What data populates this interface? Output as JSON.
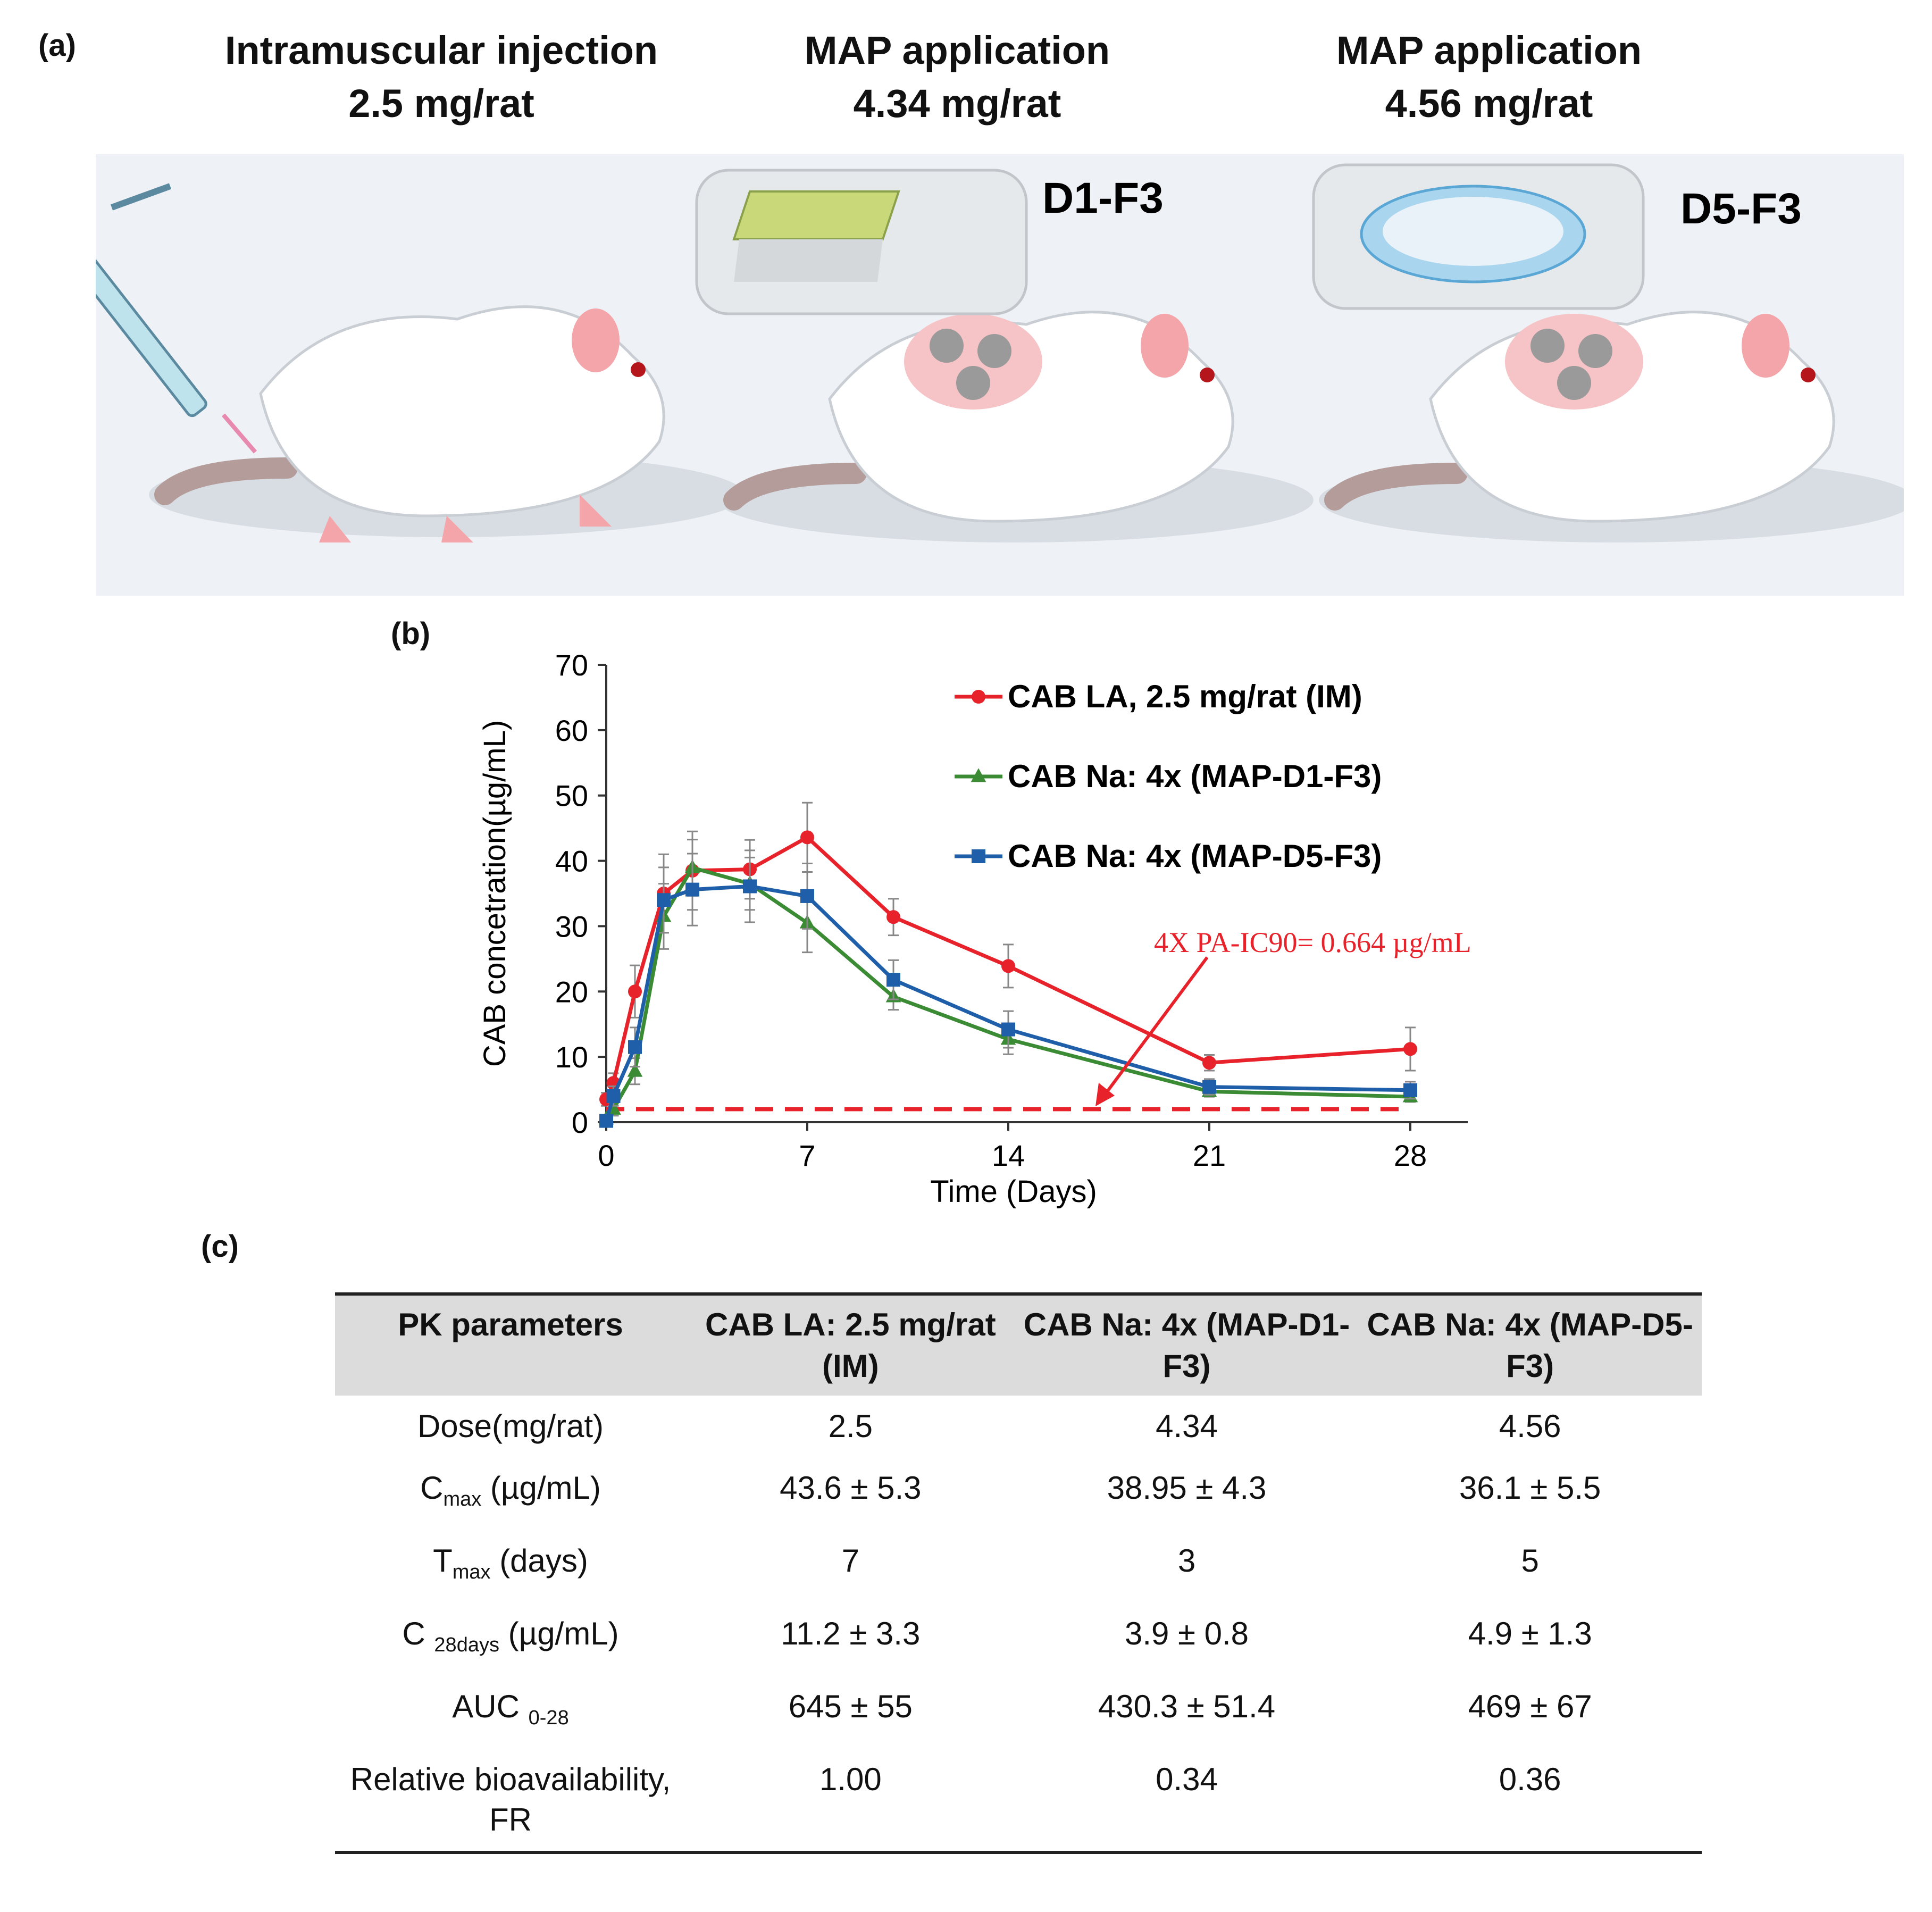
{
  "panels": {
    "a": "(a)",
    "b": "(b)",
    "c": "(c)"
  },
  "headers": [
    {
      "line1": "Intramuscular injection",
      "line2": "2.5 mg/rat"
    },
    {
      "line1": "MAP application",
      "line2": "4.34 mg/rat"
    },
    {
      "line1": "MAP application",
      "line2": "4.56 mg/rat"
    }
  ],
  "scene_labels": {
    "d1": "D1-F3",
    "d5": "D5-F3"
  },
  "chart_data": {
    "type": "line",
    "xlabel": "Time (Days)",
    "ylabel": "CAB concetration(µg/mL)",
    "xlim": [
      0,
      30
    ],
    "ylim": [
      0,
      70
    ],
    "xticks": [
      0,
      7,
      14,
      21,
      28
    ],
    "yticks": [
      0,
      10,
      20,
      30,
      40,
      50,
      60,
      70
    ],
    "grid": false,
    "legend_position": "top-right",
    "series": [
      {
        "name": "CAB LA, 2.5 mg/rat (IM)",
        "color": "#e8222b",
        "marker": "circle",
        "x": [
          0,
          0.25,
          1,
          2,
          3,
          5,
          7,
          10,
          14,
          21,
          28
        ],
        "y": [
          3.5,
          6,
          20,
          35,
          38.5,
          38.7,
          43.6,
          31.4,
          23.9,
          9.1,
          11.2
        ],
        "err": [
          1.0,
          1.5,
          4.0,
          6.0,
          6.0,
          4.5,
          5.3,
          2.8,
          3.3,
          1.2,
          3.3
        ]
      },
      {
        "name": "CAB Na: 4x (MAP-D1-F3)",
        "color": "#3a8b34",
        "marker": "triangle",
        "x": [
          0,
          0.25,
          1,
          2,
          3,
          5,
          7,
          10,
          14,
          21,
          28
        ],
        "y": [
          0.5,
          2,
          7.8,
          31.5,
          38.95,
          36.5,
          30.5,
          19.2,
          12.7,
          4.7,
          3.9
        ],
        "err": [
          0.5,
          1.0,
          2.0,
          5.0,
          4.3,
          4.0,
          4.5,
          2.0,
          2.3,
          0.8,
          0.8
        ]
      },
      {
        "name": "CAB Na: 4x (MAP-D5-F3)",
        "color": "#1f5ea8",
        "marker": "square",
        "x": [
          0,
          0.25,
          1,
          2,
          3,
          5,
          7,
          10,
          14,
          21,
          28
        ],
        "y": [
          0.2,
          4,
          11.5,
          34,
          35.6,
          36.1,
          34.6,
          21.8,
          14.2,
          5.4,
          4.9
        ],
        "err": [
          0.5,
          1.5,
          3.0,
          5.0,
          5.5,
          5.5,
          5.0,
          3.0,
          2.8,
          1.2,
          1.3
        ]
      }
    ],
    "reference_line": {
      "y": 2.0,
      "color": "#e8222b",
      "style": "dashed"
    },
    "annotation": {
      "text": "4X PA-IC90= 0.664 µg/mL",
      "color": "#e8222b"
    }
  },
  "table": {
    "headers": [
      "PK parameters",
      "CAB LA: 2.5 mg/rat (IM)",
      "CAB Na: 4x (MAP-D1-F3)",
      "CAB Na: 4x (MAP-D5-F3)"
    ],
    "rows": [
      {
        "param": "Dose(mg/rat)",
        "values": [
          "2.5",
          "4.34",
          "4.56"
        ]
      },
      {
        "param_main": "C",
        "param_sub": "max",
        "param_unit": " (µg/mL)",
        "values": [
          "43.6 ± 5.3",
          "38.95 ± 4.3",
          "36.1 ± 5.5"
        ]
      },
      {
        "param_main": "T",
        "param_sub": "max",
        "param_unit": " (days)",
        "values": [
          "7",
          "3",
          "5"
        ]
      },
      {
        "param_main": "C ",
        "param_sub": "28days",
        "param_unit": " (µg/mL)",
        "values": [
          "11.2 ± 3.3",
          "3.9 ± 0.8",
          "4.9 ± 1.3"
        ]
      },
      {
        "param_main": "AUC ",
        "param_sub": "0-28",
        "param_unit": "",
        "values": [
          "645 ± 55",
          "430.3 ± 51.4",
          "469 ± 67"
        ]
      },
      {
        "param": "Relative bioavailability, FR",
        "values": [
          "1.00",
          "0.34",
          "0.36"
        ]
      }
    ]
  }
}
